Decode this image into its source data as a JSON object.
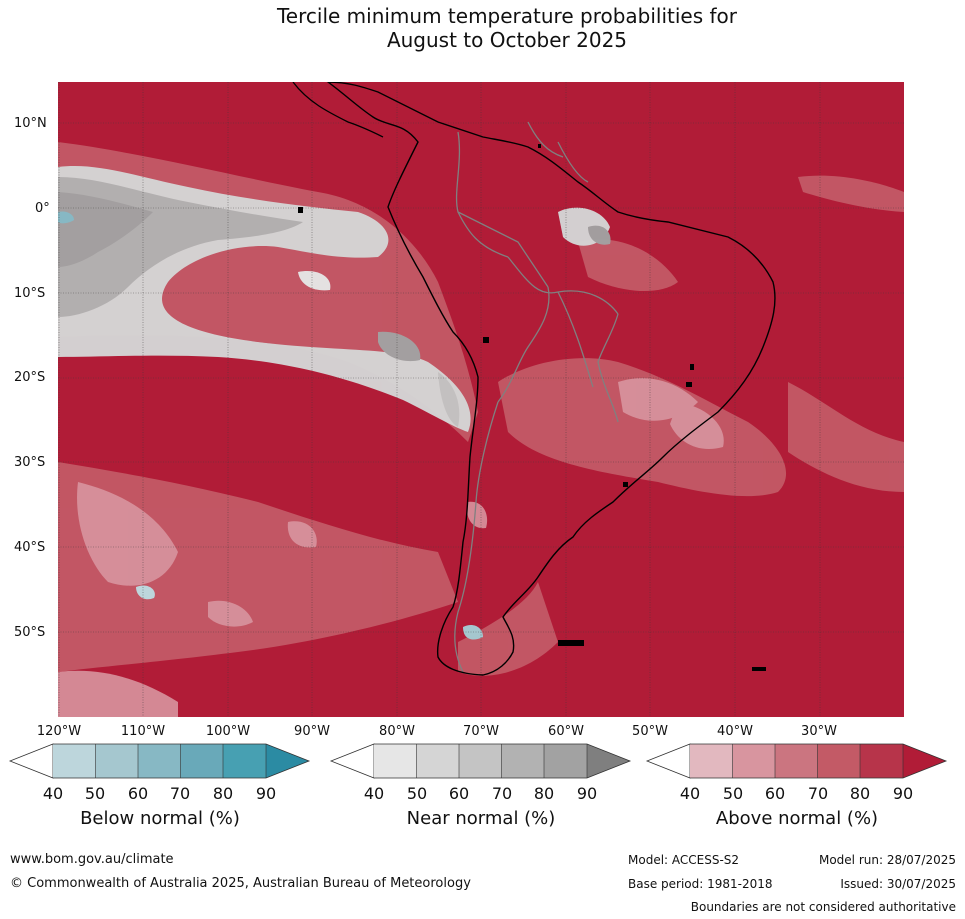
{
  "title": {
    "line1": "Tercile minimum temperature probabilities for",
    "line2": "August to October 2025"
  },
  "map": {
    "latitude_labels": [
      "10°N",
      "0°",
      "10°S",
      "20°S",
      "30°S",
      "40°S",
      "50°S"
    ],
    "longitude_labels": [
      "120°W",
      "110°W",
      "100°W",
      "90°W",
      "80°W",
      "70°W",
      "60°W",
      "50°W",
      "40°W",
      "30°W"
    ],
    "background_color": "#b11c37",
    "coastline_color": "#000000",
    "border_color": "#808080"
  },
  "colorbars": [
    {
      "name": "below",
      "title": "Below normal (%)",
      "ticks": [
        "40",
        "50",
        "60",
        "70",
        "80",
        "90"
      ],
      "colors": [
        "#bdd6dc",
        "#a5c7cf",
        "#87b8c4",
        "#69a9b9",
        "#47a0b2",
        "#2b8ba3"
      ]
    },
    {
      "name": "near",
      "title": "Near normal (%)",
      "ticks": [
        "40",
        "50",
        "60",
        "70",
        "80",
        "90"
      ],
      "colors": [
        "#e6e6e6",
        "#d5d5d5",
        "#c4c4c4",
        "#b2b2b2",
        "#a2a2a2",
        "#7f7f7f"
      ]
    },
    {
      "name": "above",
      "title": "Above normal (%)",
      "ticks": [
        "40",
        "50",
        "60",
        "70",
        "80",
        "90"
      ],
      "colors": [
        "#e2b8bf",
        "#d8959f",
        "#cb7580",
        "#c35a66",
        "#b7344a",
        "#b11c37"
      ]
    }
  ],
  "footer": {
    "website": "www.bom.gov.au/climate",
    "copyright": "© Commonwealth of Australia 2025, Australian Bureau of Meteorology",
    "model": "Model: ACCESS-S2",
    "base_period": "Base period: 1981-2018",
    "model_run": "Model run: 28/07/2025",
    "issued": "Issued: 30/07/2025",
    "disclaimer": "Boundaries are not considered authoritative"
  }
}
